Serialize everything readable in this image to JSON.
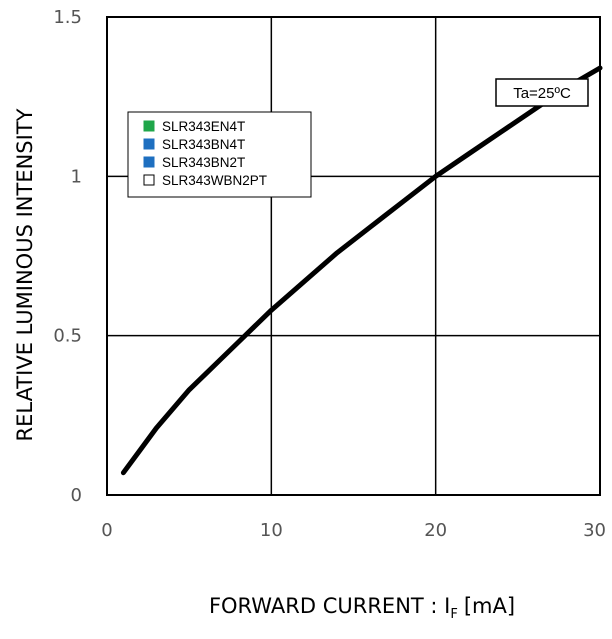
{
  "chart_data": {
    "type": "line",
    "title": "",
    "xlabel": "FORWARD CURRENT : I",
    "xlabel_subscript": "F",
    "xlabel_unit": "[mA]",
    "ylabel": "RELATIVE LUMINOUS INTENSITY",
    "xlim": [
      0,
      30
    ],
    "ylim": [
      0,
      1.5
    ],
    "x_ticks": [
      "0",
      "10",
      "20",
      "30"
    ],
    "y_ticks": [
      "0",
      "0.5",
      "1",
      "1.5"
    ],
    "grid": true,
    "legend": {
      "placement": "upper-left",
      "entries": [
        {
          "label": "SLR343EN4T",
          "color": "#1fa64a",
          "filled": true
        },
        {
          "label": "SLR343BN4T",
          "color": "#1e6fc0",
          "filled": true
        },
        {
          "label": "SLR343BN2T",
          "color": "#1e6fc0",
          "filled": true
        },
        {
          "label": "SLR343WBN2PT",
          "color": "#ffffff",
          "filled": false
        }
      ]
    },
    "annotation": "Ta=25ºC",
    "series": [
      {
        "color": "#000000",
        "x": [
          1,
          2,
          3,
          4,
          5,
          6,
          7,
          8,
          9,
          10,
          12,
          14,
          16,
          18,
          20,
          22,
          24,
          26,
          28,
          30
        ],
        "y": [
          0.07,
          0.14,
          0.21,
          0.27,
          0.33,
          0.38,
          0.43,
          0.48,
          0.53,
          0.58,
          0.67,
          0.76,
          0.84,
          0.92,
          1.0,
          1.07,
          1.14,
          1.21,
          1.28,
          1.34
        ]
      }
    ]
  }
}
